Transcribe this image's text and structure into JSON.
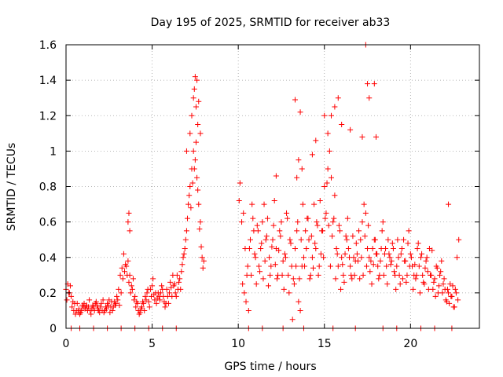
{
  "chart_data": {
    "type": "scatter",
    "title": "Day 195 of 2025, SRMTID for receiver ab33",
    "xlabel": "GPS time / hours",
    "ylabel": "SRMTID / TECUs",
    "xlim": [
      0,
      24
    ],
    "ylim": [
      0,
      1.6
    ],
    "x_ticks": [
      0,
      5,
      10,
      15,
      20
    ],
    "x_tick_labels": [
      "0",
      "5",
      "10",
      "15",
      "20"
    ],
    "y_ticks": [
      0,
      0.2,
      0.4,
      0.6,
      0.8,
      1,
      1.2,
      1.4,
      1.6
    ],
    "y_tick_labels": [
      "0",
      "0.2",
      "0.4",
      "0.6",
      "0.8",
      "1",
      "1.2",
      "1.4",
      "1.6"
    ],
    "grid": true,
    "marker": "+",
    "color": "#ff0000",
    "series": [
      {
        "name": "SRMTID",
        "x": [
          0.0,
          0.1,
          0.2,
          0.3,
          0.4,
          0.5,
          0.6,
          0.7,
          0.8,
          0.9,
          1.0,
          1.1,
          1.2,
          1.3,
          1.4,
          1.5,
          1.6,
          1.7,
          1.8,
          1.9,
          2.0,
          2.1,
          2.2,
          2.3,
          2.4,
          2.5,
          2.6,
          2.7,
          2.8,
          2.9,
          3.0,
          3.1,
          3.2,
          3.3,
          3.4,
          3.5,
          3.6,
          3.7,
          3.8,
          3.9,
          4.0,
          4.1,
          4.2,
          4.3,
          4.4,
          4.5,
          4.6,
          4.7,
          4.8,
          4.9,
          5.0,
          5.1,
          5.2,
          5.3,
          5.4,
          5.5,
          5.6,
          5.7,
          5.8,
          5.9,
          6.0,
          6.1,
          6.2,
          6.3,
          6.4,
          6.5,
          6.6,
          6.7,
          6.8,
          6.9,
          7.0,
          7.1,
          7.2,
          7.3,
          7.4,
          7.5,
          7.6,
          7.7,
          7.8,
          7.9,
          8.0,
          0.05,
          0.15,
          0.25,
          0.35,
          0.45,
          0.55,
          0.65,
          0.75,
          0.85,
          0.95,
          1.05,
          1.15,
          1.25,
          1.35,
          1.45,
          1.55,
          1.65,
          1.75,
          1.85,
          1.95,
          2.05,
          2.15,
          2.25,
          2.35,
          2.45,
          2.55,
          2.65,
          2.75,
          2.85,
          2.95,
          3.05,
          3.15,
          3.25,
          3.35,
          3.45,
          3.55,
          3.65,
          3.75,
          3.85,
          3.95,
          4.05,
          4.15,
          4.25,
          4.35,
          4.45,
          4.55,
          4.65,
          4.75,
          4.85,
          4.95,
          5.05,
          5.15,
          5.25,
          5.35,
          5.45,
          5.55,
          5.65,
          5.75,
          5.85,
          5.95,
          6.05,
          6.15,
          6.25,
          6.35,
          6.45,
          6.55,
          6.65,
          6.75,
          6.85,
          6.95,
          7.05,
          7.15,
          7.25,
          7.35,
          7.45,
          7.55,
          7.65,
          7.75,
          7.85,
          7.95,
          10.2,
          10.3,
          10.4,
          10.5,
          10.6,
          10.7,
          10.8,
          10.9,
          11.0,
          11.1,
          11.2,
          11.3,
          11.4,
          11.5,
          11.6,
          11.7,
          11.8,
          11.9,
          12.0,
          12.1,
          12.2,
          12.3,
          12.4,
          12.5,
          12.6,
          12.7,
          12.8,
          12.9,
          13.0,
          13.1,
          13.2,
          13.3,
          13.4,
          13.5,
          13.6,
          13.7,
          13.8,
          13.9,
          14.0,
          14.1,
          14.2,
          14.3,
          14.4,
          14.5,
          14.6,
          14.7,
          14.8,
          14.9,
          15.0,
          15.1,
          15.2,
          15.3,
          15.4,
          15.5,
          15.6,
          15.7,
          15.8,
          15.9,
          16.0,
          16.1,
          16.2,
          16.3,
          16.4,
          16.5,
          16.6,
          16.7,
          16.8,
          16.9,
          17.0,
          17.1,
          17.2,
          17.3,
          17.4,
          17.5,
          17.6,
          17.7,
          17.8,
          17.9,
          18.0,
          18.1,
          18.2,
          18.3,
          18.4,
          18.5,
          18.6,
          18.7,
          18.8,
          18.9,
          19.0,
          19.1,
          19.2,
          19.3,
          19.4,
          19.5,
          19.6,
          19.7,
          19.8,
          19.9,
          20.0,
          20.1,
          20.2,
          20.3,
          20.4,
          20.5,
          20.6,
          20.7,
          20.8,
          20.9,
          21.0,
          21.1,
          21.2,
          21.3,
          21.4,
          21.5,
          21.6,
          21.7,
          21.8,
          21.9,
          22.0,
          22.1,
          22.2,
          22.3,
          22.4,
          22.5,
          22.6,
          22.7,
          22.8,
          10.25,
          10.35,
          10.45,
          10.55,
          10.65,
          10.75,
          10.85,
          10.95,
          11.05,
          11.15,
          11.25,
          11.35,
          11.45,
          11.55,
          11.65,
          11.75,
          11.85,
          11.95,
          12.05,
          12.15,
          12.25,
          12.35,
          12.45,
          12.55,
          12.65,
          12.75,
          12.85,
          12.95,
          13.05,
          13.15,
          13.25,
          13.35,
          13.45,
          13.55,
          13.65,
          13.75,
          13.85,
          13.95,
          14.05,
          14.15,
          14.25,
          14.35,
          14.45,
          14.55,
          14.65,
          14.75,
          14.85,
          14.95,
          15.05,
          15.15,
          15.25,
          15.35,
          15.45,
          15.55,
          15.65,
          15.75,
          15.85,
          15.95,
          16.05,
          16.15,
          16.25,
          16.35,
          16.45,
          16.55,
          16.65,
          16.75,
          16.85,
          16.95,
          17.05,
          17.15,
          17.25,
          17.35,
          17.45,
          17.55,
          17.65,
          17.75,
          17.85,
          17.95,
          18.05,
          18.15,
          18.25,
          18.35,
          18.45,
          18.55,
          18.65,
          18.75,
          18.85,
          18.95,
          19.05,
          19.15,
          19.25,
          19.35,
          19.45,
          19.55,
          19.65,
          19.75,
          19.85,
          19.95,
          20.05,
          20.15,
          20.25,
          20.35,
          20.45,
          20.55,
          20.65,
          20.75,
          20.85,
          20.95,
          21.05,
          21.15,
          21.25,
          21.35,
          21.45,
          21.55,
          21.65,
          21.75,
          21.85,
          21.95,
          22.05,
          22.15,
          22.25,
          22.35,
          22.45,
          22.55,
          22.65,
          22.75,
          3.6,
          3.65,
          3.7,
          7.0,
          7.2,
          7.3,
          7.4,
          7.5,
          7.6,
          7.7,
          7.8,
          7.45,
          7.55,
          7.65,
          15.2,
          15.4,
          15.6,
          15.8,
          16.0,
          17.4,
          17.5,
          17.6,
          17.9,
          18.0,
          13.3,
          13.5,
          13.6,
          14.3,
          14.5,
          15.0,
          16.5,
          17.2,
          10.1,
          10.05,
          12.2,
          13.4,
          13.7,
          22.2,
          0.3,
          0.8,
          1.6,
          2.4,
          3.2,
          4.0,
          4.8,
          5.6,
          6.4,
          10.6,
          11.4,
          12.6,
          13.8,
          15.5,
          16.8,
          18.4,
          19.2,
          20.6,
          21.4,
          22.4
        ],
        "y": [
          0.22,
          0.25,
          0.2,
          0.18,
          0.15,
          0.14,
          0.1,
          0.09,
          0.08,
          0.1,
          0.12,
          0.11,
          0.13,
          0.12,
          0.1,
          0.11,
          0.12,
          0.14,
          0.13,
          0.1,
          0.12,
          0.1,
          0.09,
          0.12,
          0.14,
          0.16,
          0.12,
          0.1,
          0.15,
          0.14,
          0.16,
          0.13,
          0.2,
          0.28,
          0.32,
          0.35,
          0.38,
          0.3,
          0.24,
          0.28,
          0.18,
          0.15,
          0.1,
          0.09,
          0.12,
          0.14,
          0.18,
          0.2,
          0.15,
          0.22,
          0.24,
          0.19,
          0.2,
          0.17,
          0.18,
          0.2,
          0.22,
          0.15,
          0.14,
          0.18,
          0.2,
          0.23,
          0.3,
          0.25,
          0.18,
          0.22,
          0.28,
          0.32,
          0.4,
          0.45,
          0.55,
          0.7,
          0.8,
          0.9,
          1.0,
          0.95,
          0.85,
          0.7,
          0.6,
          0.4,
          0.38,
          0.16,
          0.2,
          0.24,
          0.12,
          0.1,
          0.08,
          0.14,
          0.11,
          0.09,
          0.13,
          0.14,
          0.12,
          0.1,
          0.16,
          0.08,
          0.13,
          0.1,
          0.15,
          0.11,
          0.09,
          0.14,
          0.16,
          0.1,
          0.11,
          0.13,
          0.09,
          0.15,
          0.12,
          0.13,
          0.18,
          0.22,
          0.3,
          0.34,
          0.42,
          0.36,
          0.3,
          0.26,
          0.2,
          0.22,
          0.16,
          0.12,
          0.14,
          0.08,
          0.11,
          0.15,
          0.1,
          0.16,
          0.22,
          0.12,
          0.18,
          0.28,
          0.16,
          0.14,
          0.2,
          0.16,
          0.24,
          0.18,
          0.12,
          0.22,
          0.14,
          0.26,
          0.18,
          0.24,
          0.2,
          0.3,
          0.26,
          0.22,
          0.36,
          0.42,
          0.5,
          0.62,
          0.75,
          0.68,
          0.82,
          0.9,
          1.05,
          0.78,
          0.56,
          0.46,
          0.34,
          0.6,
          0.65,
          0.45,
          0.3,
          0.1,
          0.5,
          0.7,
          0.55,
          0.4,
          0.58,
          0.35,
          0.45,
          0.6,
          0.7,
          0.5,
          0.62,
          0.4,
          0.35,
          0.5,
          0.72,
          0.45,
          0.3,
          0.55,
          0.6,
          0.38,
          0.42,
          0.65,
          0.3,
          0.5,
          0.35,
          0.28,
          0.45,
          0.55,
          0.15,
          0.1,
          0.35,
          0.4,
          0.55,
          0.62,
          0.5,
          0.3,
          0.4,
          0.7,
          0.45,
          0.58,
          0.35,
          0.42,
          0.55,
          0.8,
          0.65,
          0.9,
          1.0,
          0.85,
          0.6,
          0.75,
          0.45,
          0.35,
          0.55,
          0.4,
          0.3,
          0.42,
          0.5,
          0.45,
          0.35,
          0.28,
          0.4,
          0.38,
          0.42,
          0.55,
          0.5,
          0.6,
          0.7,
          0.65,
          0.45,
          0.4,
          0.38,
          0.45,
          0.5,
          0.42,
          0.35,
          0.3,
          0.45,
          0.6,
          0.42,
          0.35,
          0.5,
          0.4,
          0.38,
          0.45,
          0.3,
          0.35,
          0.4,
          0.25,
          0.45,
          0.5,
          0.38,
          0.3,
          0.55,
          0.42,
          0.35,
          0.3,
          0.28,
          0.45,
          0.35,
          0.4,
          0.3,
          0.25,
          0.38,
          0.32,
          0.45,
          0.3,
          0.22,
          0.28,
          0.35,
          0.2,
          0.3,
          0.38,
          0.25,
          0.22,
          0.15,
          0.2,
          0.25,
          0.18,
          0.12,
          0.22,
          0.4,
          0.5,
          0.25,
          0.2,
          0.15,
          0.35,
          0.45,
          0.3,
          0.62,
          0.42,
          0.25,
          0.55,
          0.32,
          0.48,
          0.28,
          0.38,
          0.52,
          0.24,
          0.3,
          0.46,
          0.58,
          0.36,
          0.28,
          0.44,
          0.52,
          0.3,
          0.22,
          0.4,
          0.62,
          0.2,
          0.48,
          0.05,
          0.25,
          0.35,
          0.6,
          0.28,
          0.5,
          0.7,
          0.35,
          0.45,
          0.62,
          0.28,
          0.52,
          0.34,
          0.48,
          0.6,
          0.3,
          0.72,
          0.55,
          0.4,
          0.62,
          0.82,
          0.58,
          0.35,
          0.52,
          0.62,
          0.28,
          0.42,
          0.58,
          0.22,
          0.36,
          0.26,
          0.52,
          0.62,
          0.4,
          0.3,
          0.52,
          0.3,
          0.48,
          0.38,
          0.28,
          0.4,
          0.3,
          0.52,
          0.35,
          0.58,
          0.32,
          0.25,
          0.36,
          0.5,
          0.42,
          0.28,
          0.38,
          0.55,
          0.3,
          0.45,
          0.25,
          0.42,
          0.36,
          0.48,
          0.32,
          0.22,
          0.5,
          0.3,
          0.42,
          0.28,
          0.38,
          0.26,
          0.48,
          0.35,
          0.4,
          0.22,
          0.36,
          0.3,
          0.48,
          0.2,
          0.42,
          0.26,
          0.34,
          0.4,
          0.22,
          0.3,
          0.44,
          0.26,
          0.18,
          0.34,
          0.24,
          0.32,
          0.2,
          0.28,
          0.16,
          0.22,
          0.14,
          0.18,
          0.24,
          0.12,
          0.2,
          0.16,
          0.6,
          0.65,
          0.55,
          1.0,
          1.1,
          1.2,
          1.3,
          1.42,
          1.4,
          1.28,
          1.1,
          1.35,
          1.25,
          1.15,
          1.1,
          1.2,
          1.25,
          1.3,
          1.15,
          1.6,
          1.38,
          1.3,
          1.38,
          1.08,
          1.29,
          0.95,
          1.22,
          0.98,
          1.06,
          1.2,
          1.12,
          1.08,
          0.82,
          0.72,
          0.86,
          0.85,
          0.9,
          0.7,
          0.0,
          0.0,
          0.0,
          0.0,
          0.0,
          0.0,
          0.0,
          0.0,
          0.0,
          0.0,
          0.0,
          0.0,
          0.0,
          0.0,
          0.0,
          0.0,
          0.0,
          0.0,
          0.0,
          0.0
        ]
      }
    ]
  }
}
